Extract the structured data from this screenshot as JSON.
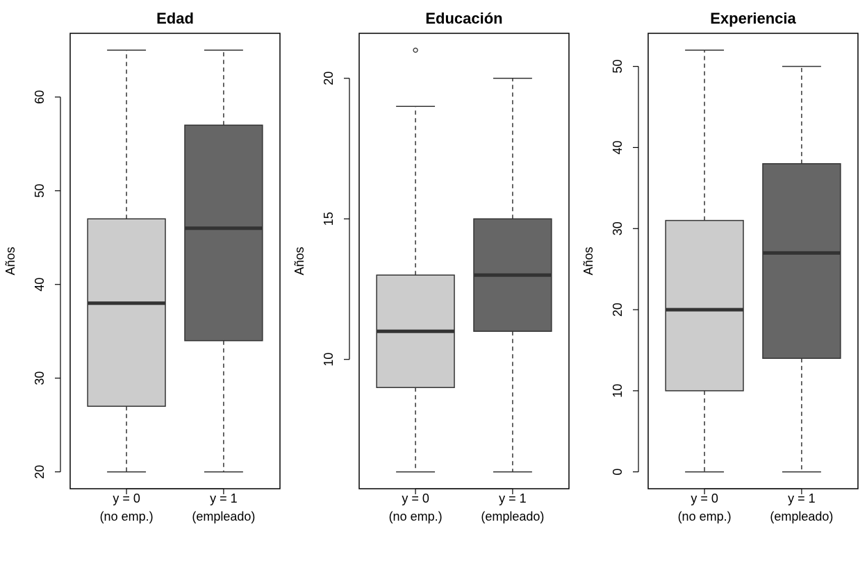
{
  "chart_data": [
    {
      "type": "boxplot",
      "title": "Edad",
      "ylabel": "Años",
      "xlabel": "",
      "ylim": [
        18.2,
        66.8
      ],
      "yticks": [
        20,
        30,
        40,
        50,
        60
      ],
      "categories": [
        {
          "line1": "y = 0",
          "line2": "(no emp.)"
        },
        {
          "line1": "y = 1",
          "line2": "(empleado)"
        }
      ],
      "boxes": [
        {
          "min": 20,
          "q1": 27,
          "median": 38,
          "q3": 47,
          "max": 65,
          "outliers": [],
          "color": "#cccccc"
        },
        {
          "min": 20,
          "q1": 34,
          "median": 46,
          "q3": 57,
          "max": 65,
          "outliers": [],
          "color": "#666666"
        }
      ]
    },
    {
      "type": "boxplot",
      "title": "Educación",
      "ylabel": "Años",
      "xlabel": "",
      "ylim": [
        5.4,
        21.6
      ],
      "yticks": [
        10,
        15,
        20
      ],
      "categories": [
        {
          "line1": "y = 0",
          "line2": "(no emp.)"
        },
        {
          "line1": "y = 1",
          "line2": "(empleado)"
        }
      ],
      "boxes": [
        {
          "min": 6,
          "q1": 9,
          "median": 11,
          "q3": 13,
          "max": 19,
          "outliers": [
            21
          ],
          "color": "#cccccc"
        },
        {
          "min": 6,
          "q1": 11,
          "median": 13,
          "q3": 15,
          "max": 20,
          "outliers": [],
          "color": "#666666"
        }
      ]
    },
    {
      "type": "boxplot",
      "title": "Experiencia",
      "ylabel": "Años",
      "xlabel": "",
      "ylim": [
        -2.08,
        54.08
      ],
      "yticks": [
        0,
        10,
        20,
        30,
        40,
        50
      ],
      "categories": [
        {
          "line1": "y = 0",
          "line2": "(no emp.)"
        },
        {
          "line1": "y = 1",
          "line2": "(empleado)"
        }
      ],
      "boxes": [
        {
          "min": 0,
          "q1": 10,
          "median": 20,
          "q3": 31,
          "max": 52,
          "outliers": [],
          "color": "#cccccc"
        },
        {
          "min": 0,
          "q1": 14,
          "median": 27,
          "q3": 38,
          "max": 50,
          "outliers": [],
          "color": "#666666"
        }
      ]
    }
  ]
}
